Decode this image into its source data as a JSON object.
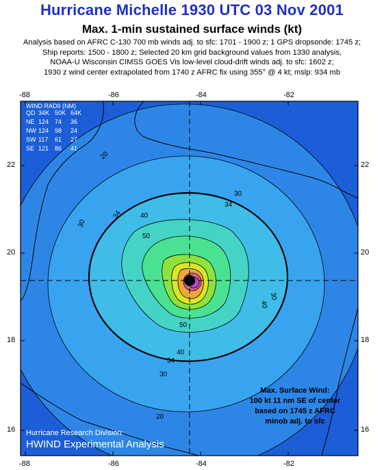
{
  "header": {
    "title": "Hurricane Michelle 1930 UTC 03 Nov 2001",
    "subtitle": "Max. 1-min sustained surface winds (kt)",
    "notes": [
      "Analysis based on AFRC C-130 700 mb winds adj. to sfc: 1701 - 1900 z; 1 GPS dropsonde: 1745 z;",
      "Ship reports: 1500 - 1800 z; Selected 20 km grid background values from 1330 analysis,",
      "NOAA-U Wisconsin CIMSS GOES Vis low-level cloud-drift winds adj. to sfc: 1602 z;",
      "1930 z wind center extrapolated from 1740 z AFRC fix using 355° @ 4 kt; mslp: 934 mb"
    ]
  },
  "axes": {
    "lon_ticks": [
      "-88",
      "-86",
      "-84",
      "-82"
    ],
    "lat_ticks": [
      "22",
      "20",
      "18",
      "16"
    ]
  },
  "wind_radii": {
    "title": "WIND RADII (NM)",
    "header": [
      "QD",
      "34K",
      "50K",
      "64K"
    ],
    "rows": [
      [
        "NE",
        "124",
        "74",
        "36"
      ],
      [
        "NW",
        "124",
        "98",
        "24"
      ],
      [
        "SW",
        "117",
        "61",
        "27"
      ],
      [
        "SE",
        "121",
        "86",
        "41"
      ]
    ]
  },
  "max_wind": {
    "lines": [
      "Max. Surface Wind:",
      "100 kt 11 nm SE of center",
      "based on  1745 z AFRC",
      "minob adj. to sfc"
    ]
  },
  "credit": {
    "org": "Hurricane Research Division:",
    "product": "HWIND Experimental Analysis"
  },
  "contour_labels": [
    "20",
    "30",
    "34",
    "40",
    "50",
    "34",
    "40",
    "30",
    "20",
    "30",
    "34",
    "40",
    "30",
    "50"
  ],
  "colors": {
    "title": "#1d2fc8",
    "ring_20": "#2d86e6",
    "ring_30": "#38a4f0",
    "ring_34": "#3fbde8",
    "ring_40": "#45d3c6",
    "ring_50": "#4ae292",
    "ring_60": "#8ee23e",
    "ring_70": "#d8e626",
    "ring_80": "#f0a63a",
    "ring_90": "#d8609a",
    "ring_100": "#b648c8",
    "outer": "#1c5ed8",
    "land": "#2aa03a"
  }
}
